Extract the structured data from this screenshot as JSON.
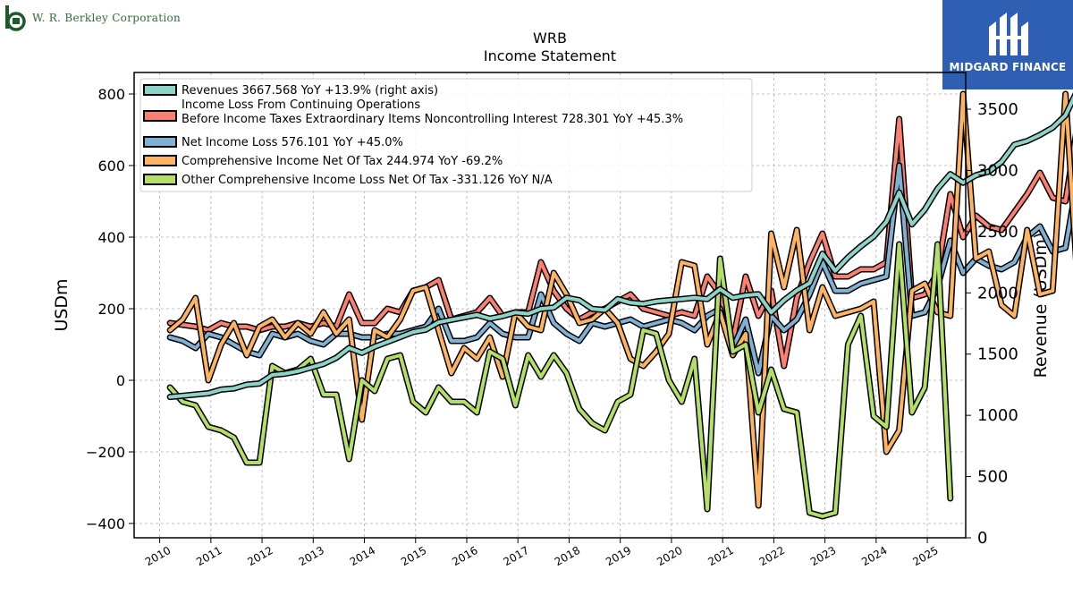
{
  "header": {
    "company_name": "W. R. Berkley Corporation",
    "brand_name": "MIDGARD FINANCE",
    "brand_color": "#2f5fb3"
  },
  "chart_data": {
    "type": "line",
    "title": "WRB",
    "subtitle": "Income Statement",
    "ylabel": "USDm",
    "ylabel_right": "Revenue (USDm)",
    "ylim": [
      -440,
      860
    ],
    "ylim_right": [
      0,
      3800
    ],
    "yticks": [
      -400,
      -200,
      0,
      200,
      400,
      600,
      800
    ],
    "yticks_right": [
      0,
      500,
      1000,
      1500,
      2000,
      2500,
      3000,
      3500
    ],
    "xlim": [
      2009.5,
      2025.75
    ],
    "xticks": [
      2010,
      2011,
      2012,
      2013,
      2014,
      2015,
      2016,
      2017,
      2018,
      2019,
      2020,
      2021,
      2022,
      2023,
      2024,
      2025
    ],
    "grid": true,
    "legend_position": "top-left",
    "series": [
      {
        "name": "Revenues",
        "legend_label": "Revenues  3667.568 YoY +13.9% (right axis)",
        "axis": "right",
        "color": "#8dd3c7",
        "x_start": 2010.2,
        "step": 0.25,
        "values": [
          1150,
          1160,
          1170,
          1180,
          1210,
          1220,
          1250,
          1260,
          1330,
          1340,
          1360,
          1390,
          1420,
          1470,
          1550,
          1510,
          1560,
          1600,
          1640,
          1680,
          1700,
          1760,
          1780,
          1800,
          1820,
          1790,
          1810,
          1840,
          1830,
          1870,
          1880,
          1960,
          1940,
          1870,
          1860,
          1950,
          1920,
          1910,
          1930,
          1940,
          1950,
          1960,
          1950,
          2030,
          1960,
          1980,
          1990,
          1840,
          1940,
          2020,
          2080,
          2320,
          2180,
          2290,
          2380,
          2460,
          2580,
          2820,
          2560,
          2680,
          2850,
          2970,
          2900,
          2960,
          2990,
          3070,
          3210,
          3240,
          3290,
          3350,
          3450,
          3670
        ]
      },
      {
        "name": "Income Loss From Continuing Operations Before Income Taxes Extraordinary Items Noncontrolling Interest",
        "legend_label": [
          "Income Loss From Continuing Operations",
          "Before Income Taxes Extraordinary Items Noncontrolling Interest  728.301 YoY +45.3%"
        ],
        "axis": "left",
        "color": "#fb8072",
        "x_start": 2010.2,
        "step": 0.25,
        "values": [
          160,
          155,
          150,
          140,
          160,
          150,
          150,
          140,
          150,
          150,
          160,
          150,
          160,
          150,
          240,
          160,
          160,
          200,
          190,
          250,
          260,
          280,
          170,
          180,
          190,
          230,
          180,
          190,
          190,
          330,
          250,
          200,
          170,
          190,
          200,
          220,
          240,
          200,
          190,
          180,
          190,
          180,
          290,
          240,
          110,
          290,
          180,
          250,
          40,
          230,
          330,
          410,
          290,
          290,
          310,
          310,
          330,
          730,
          230,
          240,
          300,
          520,
          400,
          460,
          430,
          420,
          470,
          520,
          580,
          510,
          500,
          728
        ]
      },
      {
        "name": "Net Income Loss",
        "legend_label": "Net Income Loss  576.101 YoY +45.0%",
        "axis": "left",
        "color": "#80b1d3",
        "x_start": 2010.2,
        "step": 0.25,
        "values": [
          120,
          110,
          90,
          130,
          120,
          100,
          80,
          70,
          130,
          120,
          130,
          110,
          100,
          130,
          130,
          120,
          120,
          130,
          130,
          140,
          150,
          200,
          110,
          110,
          120,
          160,
          130,
          120,
          120,
          240,
          160,
          130,
          110,
          160,
          150,
          160,
          170,
          150,
          160,
          170,
          160,
          140,
          180,
          200,
          90,
          170,
          20,
          180,
          140,
          170,
          240,
          330,
          250,
          250,
          270,
          280,
          290,
          600,
          180,
          190,
          260,
          390,
          300,
          340,
          320,
          310,
          330,
          400,
          430,
          360,
          370,
          576
        ]
      },
      {
        "name": "Comprehensive Income Net Of Tax",
        "legend_label": "Comprehensive Income Net Of Tax  244.974 YoY -69.2%",
        "axis": "left",
        "color": "#fdb462",
        "x_start": 2010.2,
        "step": 0.25,
        "values": [
          140,
          170,
          230,
          0,
          100,
          160,
          70,
          150,
          170,
          120,
          160,
          130,
          190,
          130,
          170,
          -110,
          140,
          120,
          170,
          250,
          260,
          140,
          20,
          90,
          60,
          120,
          10,
          190,
          150,
          140,
          300,
          240,
          160,
          170,
          200,
          160,
          60,
          40,
          80,
          130,
          330,
          320,
          100,
          190,
          70,
          130,
          -350,
          410,
          260,
          420,
          140,
          260,
          180,
          190,
          200,
          220,
          -200,
          -140,
          250,
          270,
          190,
          180,
          800,
          340,
          360,
          210,
          180,
          420,
          240,
          250,
          800,
          240
        ]
      },
      {
        "name": "Other Comprehensive Income Loss Net Of Tax",
        "legend_label": "Other Comprehensive Income Loss Net Of Tax  -331.126 YoY N/A",
        "axis": "left",
        "color": "#b3de69",
        "x_start": 2010.2,
        "step": 0.25,
        "values": [
          -20,
          -60,
          -70,
          -130,
          -140,
          -160,
          -230,
          -230,
          40,
          20,
          30,
          60,
          -40,
          -40,
          -220,
          0,
          -30,
          60,
          70,
          -60,
          -90,
          -20,
          -60,
          -60,
          -90,
          80,
          60,
          -70,
          70,
          10,
          70,
          20,
          -80,
          -120,
          -140,
          -60,
          -40,
          140,
          130,
          0,
          -60,
          60,
          -360,
          340,
          80,
          100,
          -90,
          30,
          -80,
          -90,
          -370,
          -380,
          -370,
          100,
          180,
          -100,
          -130,
          380,
          -90,
          -20,
          380,
          -330
        ]
      }
    ]
  }
}
